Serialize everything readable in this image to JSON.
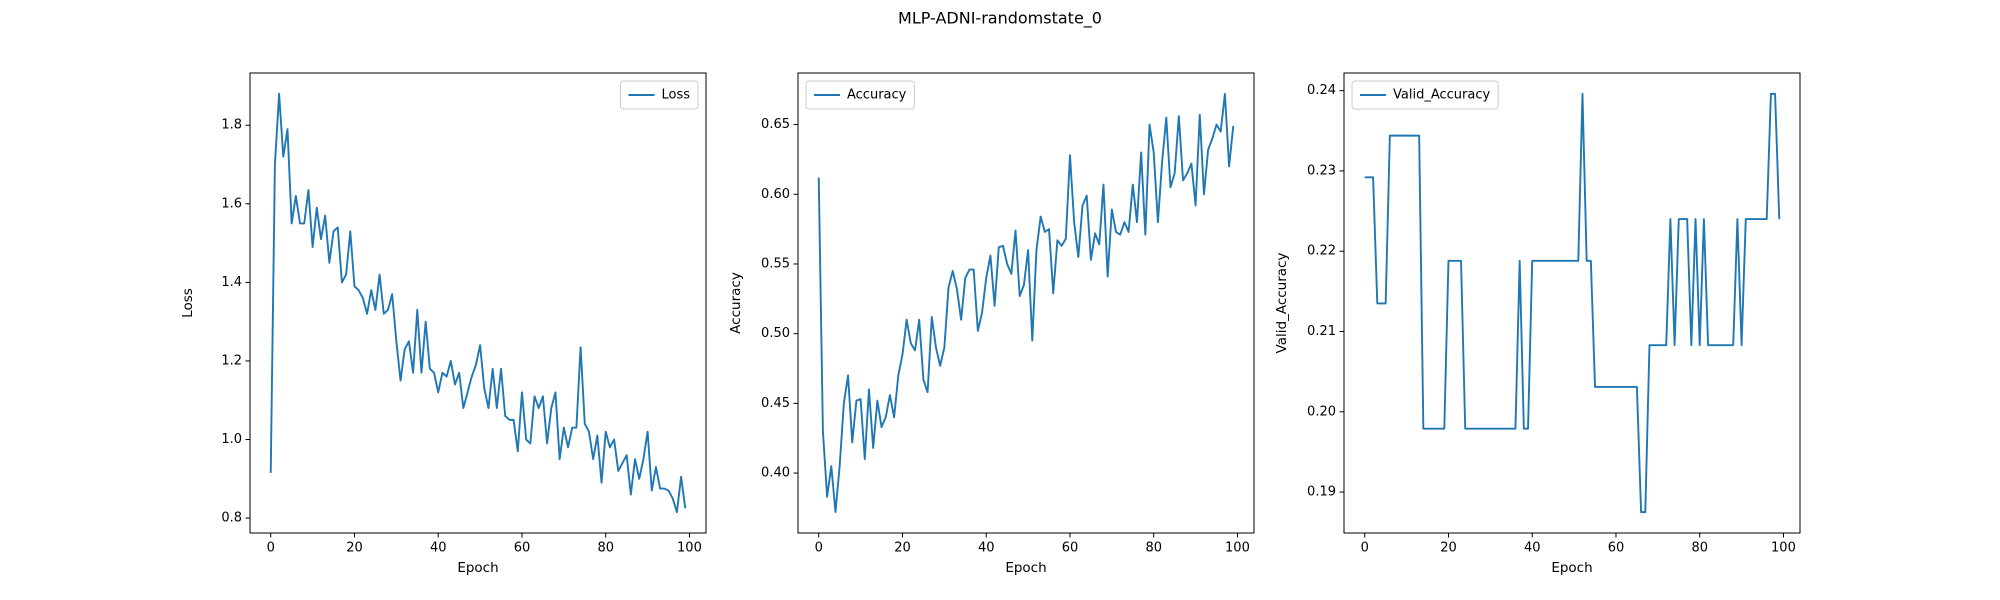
{
  "title": "MLP-ADNI-randomstate_0",
  "chart_data": [
    {
      "type": "line",
      "xlabel": "Epoch",
      "ylabel": "Loss",
      "legend": "upper right",
      "x": [
        0,
        1,
        2,
        3,
        4,
        5,
        6,
        7,
        8,
        9,
        10,
        11,
        12,
        13,
        14,
        15,
        16,
        17,
        18,
        19,
        20,
        21,
        22,
        23,
        24,
        25,
        26,
        27,
        28,
        29,
        30,
        31,
        32,
        33,
        34,
        35,
        36,
        37,
        38,
        39,
        40,
        41,
        42,
        43,
        44,
        45,
        46,
        47,
        48,
        49,
        50,
        51,
        52,
        53,
        54,
        55,
        56,
        57,
        58,
        59,
        60,
        61,
        62,
        63,
        64,
        65,
        66,
        67,
        68,
        69,
        70,
        71,
        72,
        73,
        74,
        75,
        76,
        77,
        78,
        79,
        80,
        81,
        82,
        83,
        84,
        85,
        86,
        87,
        88,
        89,
        90,
        91,
        92,
        93,
        94,
        95,
        96,
        97,
        98,
        99
      ],
      "series": [
        {
          "name": "Loss",
          "color": "#1f77b4",
          "values": [
            0.915,
            1.7,
            1.88,
            1.72,
            1.79,
            1.55,
            1.62,
            1.55,
            1.55,
            1.635,
            1.49,
            1.59,
            1.51,
            1.57,
            1.45,
            1.53,
            1.54,
            1.4,
            1.42,
            1.53,
            1.39,
            1.38,
            1.36,
            1.32,
            1.38,
            1.33,
            1.42,
            1.32,
            1.33,
            1.37,
            1.25,
            1.15,
            1.23,
            1.25,
            1.17,
            1.33,
            1.17,
            1.3,
            1.18,
            1.17,
            1.12,
            1.17,
            1.16,
            1.2,
            1.14,
            1.17,
            1.08,
            1.12,
            1.16,
            1.19,
            1.24,
            1.13,
            1.08,
            1.18,
            1.08,
            1.18,
            1.06,
            1.05,
            1.05,
            0.97,
            1.12,
            1.0,
            0.99,
            1.11,
            1.08,
            1.11,
            0.99,
            1.08,
            1.12,
            0.95,
            1.03,
            0.98,
            1.03,
            1.03,
            1.235,
            1.04,
            1.02,
            0.95,
            1.01,
            0.89,
            1.02,
            0.98,
            1.0,
            0.92,
            0.94,
            0.96,
            0.86,
            0.95,
            0.9,
            0.95,
            1.02,
            0.87,
            0.93,
            0.875,
            0.875,
            0.87,
            0.85,
            0.815,
            0.905,
            0.825
          ]
        }
      ],
      "xlim": [
        -4.95,
        103.95
      ],
      "xticks": [
        0,
        20,
        40,
        60,
        80,
        100
      ],
      "ylim": [
        0.762,
        1.933
      ],
      "yticks": [
        0.8,
        {
          "value": 1,
          "label": "1.0"
        },
        1.2,
        1.4,
        1.6,
        1.8
      ]
    },
    {
      "type": "line",
      "xlabel": "Epoch",
      "ylabel": "Accuracy",
      "legend": "upper left",
      "x": [
        0,
        1,
        2,
        3,
        4,
        5,
        6,
        7,
        8,
        9,
        10,
        11,
        12,
        13,
        14,
        15,
        16,
        17,
        18,
        19,
        20,
        21,
        22,
        23,
        24,
        25,
        26,
        27,
        28,
        29,
        30,
        31,
        32,
        33,
        34,
        35,
        36,
        37,
        38,
        39,
        40,
        41,
        42,
        43,
        44,
        45,
        46,
        47,
        48,
        49,
        50,
        51,
        52,
        53,
        54,
        55,
        56,
        57,
        58,
        59,
        60,
        61,
        62,
        63,
        64,
        65,
        66,
        67,
        68,
        69,
        70,
        71,
        72,
        73,
        74,
        75,
        76,
        77,
        78,
        79,
        80,
        81,
        82,
        83,
        84,
        85,
        86,
        87,
        88,
        89,
        90,
        91,
        92,
        93,
        94,
        95,
        96,
        97,
        98,
        99
      ],
      "series": [
        {
          "name": "Accuracy",
          "color": "#1f77b4",
          "values": [
            0.612,
            0.43,
            0.383,
            0.405,
            0.372,
            0.405,
            0.45,
            0.47,
            0.422,
            0.452,
            0.453,
            0.41,
            0.46,
            0.418,
            0.452,
            0.433,
            0.44,
            0.456,
            0.44,
            0.47,
            0.485,
            0.51,
            0.493,
            0.488,
            0.51,
            0.467,
            0.458,
            0.512,
            0.49,
            0.477,
            0.49,
            0.533,
            0.545,
            0.532,
            0.51,
            0.54,
            0.546,
            0.546,
            0.502,
            0.515,
            0.54,
            0.556,
            0.52,
            0.562,
            0.563,
            0.55,
            0.543,
            0.574,
            0.527,
            0.535,
            0.56,
            0.495,
            0.56,
            0.584,
            0.573,
            0.575,
            0.529,
            0.567,
            0.563,
            0.568,
            0.628,
            0.58,
            0.555,
            0.592,
            0.599,
            0.553,
            0.572,
            0.564,
            0.607,
            0.541,
            0.589,
            0.573,
            0.571,
            0.58,
            0.573,
            0.607,
            0.58,
            0.63,
            0.571,
            0.65,
            0.63,
            0.58,
            0.623,
            0.655,
            0.605,
            0.615,
            0.656,
            0.61,
            0.615,
            0.622,
            0.592,
            0.657,
            0.6,
            0.632,
            0.64,
            0.65,
            0.645,
            0.672,
            0.62,
            0.649
          ]
        }
      ],
      "xlim": [
        -4.95,
        103.95
      ],
      "xticks": [
        0,
        20,
        40,
        60,
        80,
        100
      ],
      "ylim": [
        0.357,
        0.687
      ],
      "yticks": [
        {
          "value": 0.4,
          "label": "0.40"
        },
        0.45,
        {
          "value": 0.5,
          "label": "0.50"
        },
        0.55,
        {
          "value": 0.6,
          "label": "0.60"
        },
        0.65
      ]
    },
    {
      "type": "line",
      "xlabel": "Epoch",
      "ylabel": "Valid_Accuracy",
      "legend": "upper left",
      "x": [
        0,
        1,
        2,
        3,
        4,
        5,
        6,
        7,
        8,
        9,
        10,
        11,
        12,
        13,
        14,
        15,
        16,
        17,
        18,
        19,
        20,
        21,
        22,
        23,
        24,
        25,
        26,
        27,
        28,
        29,
        30,
        31,
        32,
        33,
        34,
        35,
        36,
        37,
        38,
        39,
        40,
        41,
        42,
        43,
        44,
        45,
        46,
        47,
        48,
        49,
        50,
        51,
        52,
        53,
        54,
        55,
        56,
        57,
        58,
        59,
        60,
        61,
        62,
        63,
        64,
        65,
        66,
        67,
        68,
        69,
        70,
        71,
        72,
        73,
        74,
        75,
        76,
        77,
        78,
        79,
        80,
        81,
        82,
        83,
        84,
        85,
        86,
        87,
        88,
        89,
        90,
        91,
        92,
        93,
        94,
        95,
        96,
        97,
        98,
        99
      ],
      "series": [
        {
          "name": "Valid_Accuracy",
          "color": "#1f77b4",
          "values": [
            0.2292,
            0.2292,
            0.2292,
            0.2135,
            0.2135,
            0.2135,
            0.2344,
            0.2344,
            0.2344,
            0.2344,
            0.2344,
            0.2344,
            0.2344,
            0.2344,
            0.1979,
            0.1979,
            0.1979,
            0.1979,
            0.1979,
            0.1979,
            0.2188,
            0.2188,
            0.2188,
            0.2188,
            0.1979,
            0.1979,
            0.1979,
            0.1979,
            0.1979,
            0.1979,
            0.1979,
            0.1979,
            0.1979,
            0.1979,
            0.1979,
            0.1979,
            0.1979,
            0.2188,
            0.1979,
            0.1979,
            0.2188,
            0.2188,
            0.2188,
            0.2188,
            0.2188,
            0.2188,
            0.2188,
            0.2188,
            0.2188,
            0.2188,
            0.2188,
            0.2188,
            0.2396,
            0.2188,
            0.2188,
            0.2031,
            0.2031,
            0.2031,
            0.2031,
            0.2031,
            0.2031,
            0.2031,
            0.2031,
            0.2031,
            0.2031,
            0.2031,
            0.1875,
            0.1875,
            0.2083,
            0.2083,
            0.2083,
            0.2083,
            0.2083,
            0.224,
            0.2083,
            0.224,
            0.224,
            0.224,
            0.2083,
            0.224,
            0.2083,
            0.224,
            0.2083,
            0.2083,
            0.2083,
            0.2083,
            0.2083,
            0.2083,
            0.2083,
            0.224,
            0.2083,
            0.224,
            0.224,
            0.224,
            0.224,
            0.224,
            0.224,
            0.2396,
            0.2396,
            0.224
          ]
        }
      ],
      "xlim": [
        -4.95,
        103.95
      ],
      "xticks": [
        0,
        20,
        40,
        60,
        80,
        100
      ],
      "ylim": [
        0.1849,
        0.2422
      ],
      "yticks": [
        0.19,
        {
          "value": 0.2,
          "label": "0.20"
        },
        0.21,
        0.22,
        0.23,
        0.24
      ]
    }
  ]
}
